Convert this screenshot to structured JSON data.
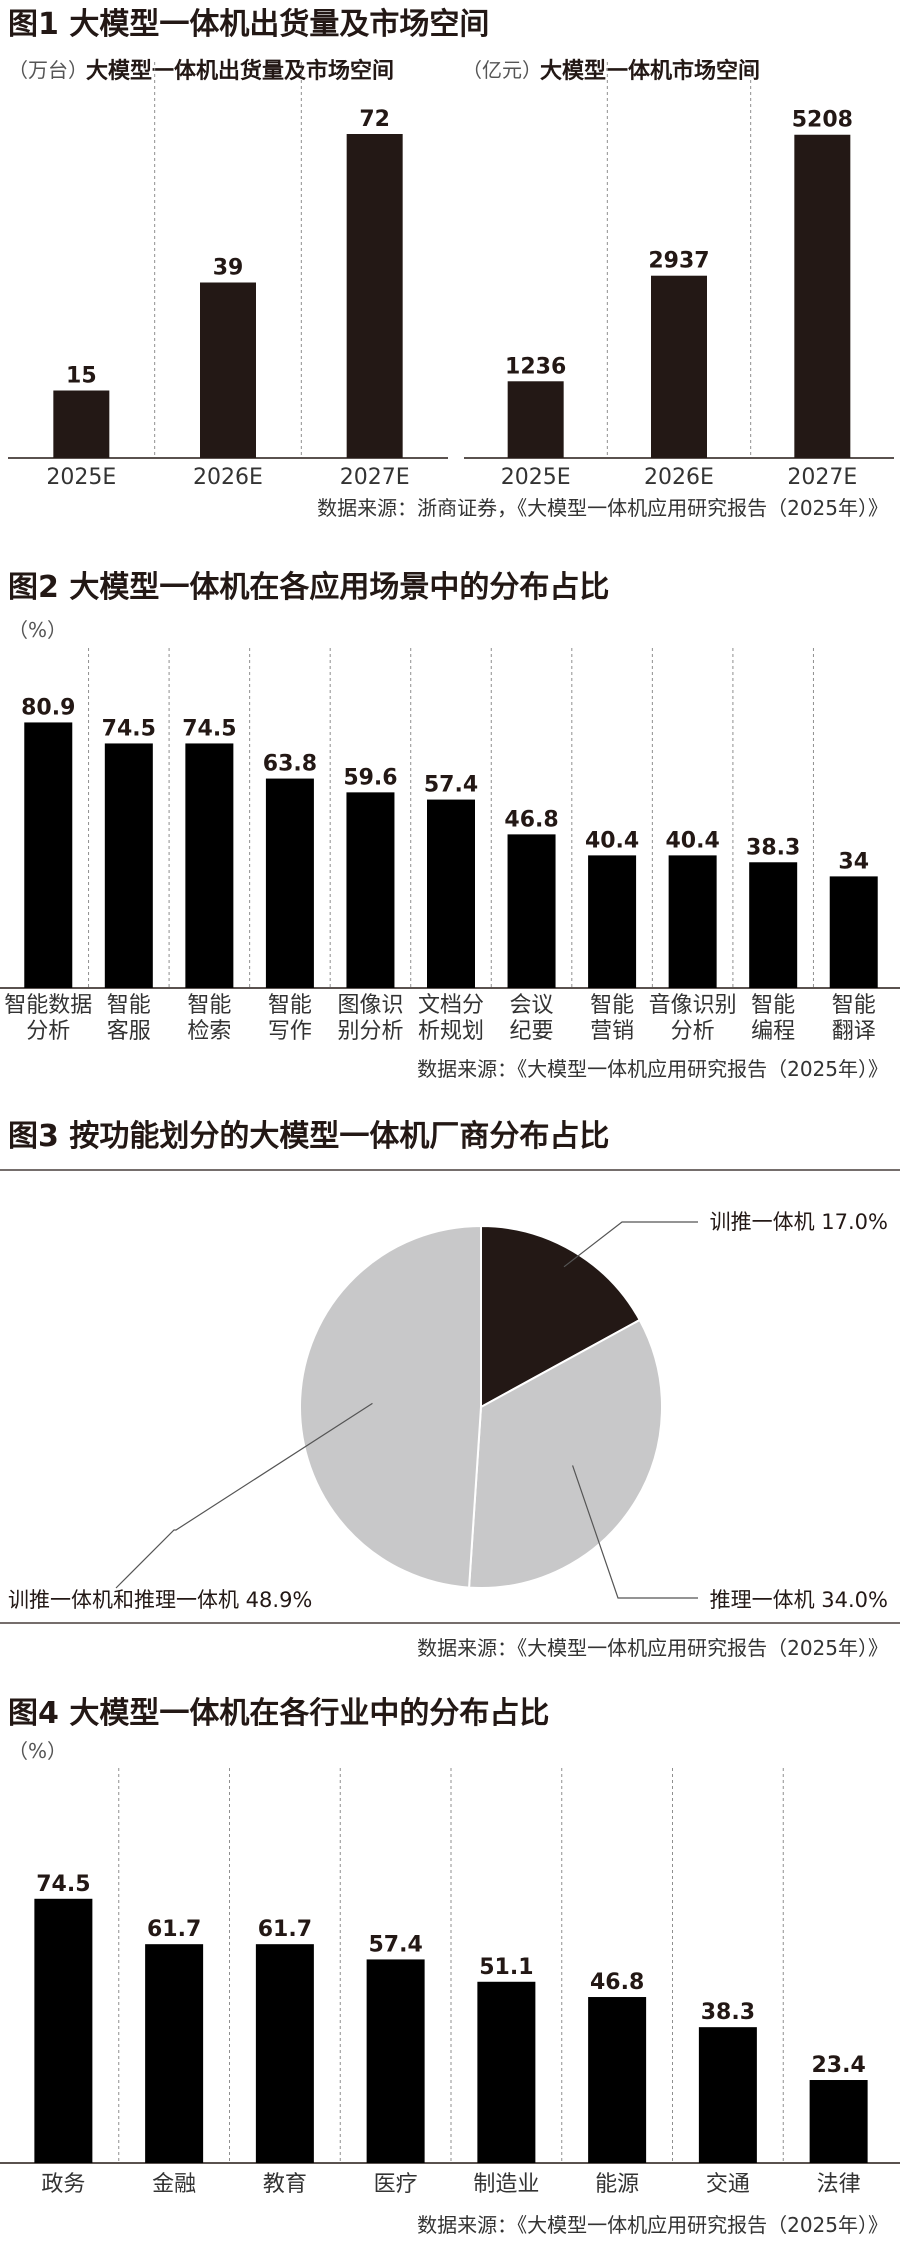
{
  "colors": {
    "dark": "#231815",
    "black": "#000000",
    "gray": "#c8c8c9",
    "rule": "#231815"
  },
  "fig1": {
    "title": "图1 大模型一体机出货量及市场空间",
    "source": "数据来源：浙商证券，《大模型一体机应用研究报告（2025年）》",
    "left": {
      "unit": "（万台）",
      "subtitle": "大模型一体机出货量及市场空间"
    },
    "right": {
      "unit": "（亿元）",
      "subtitle": "大模型一体机市场空间"
    }
  },
  "fig2": {
    "title": "图2 大模型一体机在各应用场景中的分布占比",
    "unit": "（%）",
    "source": "数据来源：《大模型一体机应用研究报告（2025年）》",
    "labels": [
      [
        "智能数据",
        "分析"
      ],
      [
        "智能",
        "客服"
      ],
      [
        "智能",
        "检索"
      ],
      [
        "智能",
        "写作"
      ],
      [
        "图像识",
        "别分析"
      ],
      [
        "文档分",
        "析规划"
      ],
      [
        "会议",
        "纪要"
      ],
      [
        "智能",
        "营销"
      ],
      [
        "音像识别",
        "分析"
      ],
      [
        "智能",
        "编程"
      ],
      [
        "智能",
        "翻译"
      ]
    ]
  },
  "fig3": {
    "title": "图3 按功能划分的大模型一体机厂商分布占比",
    "source": "数据来源：《大模型一体机应用研究报告（2025年）》",
    "labels": [
      "训推一体机 17.0%",
      "推理一体机 34.0%",
      "训推一体机和推理一体机 48.9%"
    ]
  },
  "fig4": {
    "title": "图4 大模型一体机在各行业中的分布占比",
    "unit": "（%）",
    "source": "数据来源：《大模型一体机应用研究报告（2025年）》"
  },
  "chart_data": [
    {
      "type": "bar",
      "categories": [
        "2025E",
        "2026E",
        "2027E"
      ],
      "series": [
        {
          "name": "大模型一体机出货量及市场空间",
          "values": [
            15,
            39,
            72
          ]
        }
      ],
      "title": "大模型一体机出货量及市场空间",
      "ylabel": "（万台）",
      "ylim": [
        0,
        80
      ],
      "grid": false
    },
    {
      "type": "bar",
      "categories": [
        "2025E",
        "2026E",
        "2027E"
      ],
      "series": [
        {
          "name": "大模型一体机市场空间",
          "values": [
            1236,
            2937,
            5208
          ]
        }
      ],
      "title": "大模型一体机市场空间",
      "ylabel": "（亿元）",
      "ylim": [
        0,
        5800
      ],
      "grid": false
    },
    {
      "type": "bar",
      "categories": [
        "智能数据分析",
        "智能客服",
        "智能检索",
        "智能写作",
        "图像识别分析",
        "文档分析规划",
        "会议纪要",
        "智能营销",
        "音像识别分析",
        "智能编程",
        "智能翻译"
      ],
      "values": [
        80.9,
        74.5,
        74.5,
        63.8,
        59.6,
        57.4,
        46.8,
        40.4,
        40.4,
        38.3,
        34
      ],
      "title": "图2 大模型一体机在各应用场景中的分布占比",
      "ylabel": "（%）",
      "ylim": [
        0,
        92
      ],
      "grid": false
    },
    {
      "type": "pie",
      "categories": [
        "训推一体机",
        "推理一体机",
        "训推一体机和推理一体机"
      ],
      "values": [
        17.0,
        34.0,
        48.9
      ],
      "title": "图3 按功能划分的大模型一体机厂商分布占比"
    },
    {
      "type": "bar",
      "categories": [
        "政务",
        "金融",
        "教育",
        "医疗",
        "制造业",
        "能源",
        "交通",
        "法律"
      ],
      "values": [
        74.5,
        61.7,
        61.7,
        57.4,
        51.1,
        46.8,
        38.3,
        23.4
      ],
      "title": "图4 大模型一体机在各行业中的分布占比",
      "ylabel": "（%）",
      "ylim": [
        0,
        86
      ],
      "grid": false
    }
  ]
}
